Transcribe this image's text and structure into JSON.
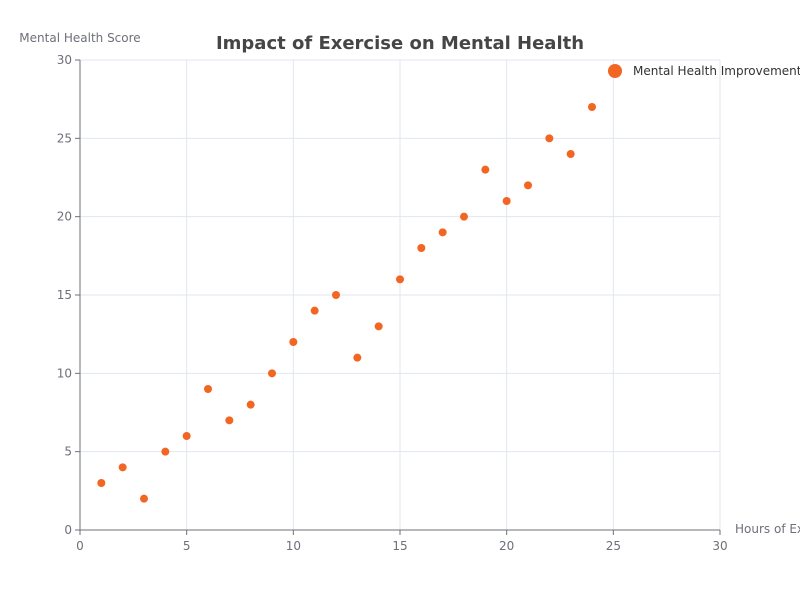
{
  "chart_data": {
    "type": "scatter",
    "title": "Impact of Exercise on Mental Health",
    "xlabel": "Hours of Exercise",
    "ylabel": "Mental Health Score",
    "xlim": [
      0,
      30
    ],
    "ylim": [
      0,
      30
    ],
    "x_ticks": [
      0,
      5,
      10,
      15,
      20,
      25,
      30
    ],
    "y_ticks": [
      0,
      5,
      10,
      15,
      20,
      25,
      30
    ],
    "grid": true,
    "legend_position": "top-right",
    "colors": {
      "series": "#f26522"
    },
    "series": [
      {
        "name": "Mental Health Improvement",
        "points": [
          {
            "x": 1,
            "y": 3
          },
          {
            "x": 2,
            "y": 4
          },
          {
            "x": 3,
            "y": 2
          },
          {
            "x": 4,
            "y": 5
          },
          {
            "x": 5,
            "y": 6
          },
          {
            "x": 6,
            "y": 9
          },
          {
            "x": 7,
            "y": 7
          },
          {
            "x": 8,
            "y": 8
          },
          {
            "x": 9,
            "y": 10
          },
          {
            "x": 10,
            "y": 12
          },
          {
            "x": 11,
            "y": 14
          },
          {
            "x": 12,
            "y": 15
          },
          {
            "x": 13,
            "y": 11
          },
          {
            "x": 14,
            "y": 13
          },
          {
            "x": 15,
            "y": 16
          },
          {
            "x": 16,
            "y": 18
          },
          {
            "x": 17,
            "y": 19
          },
          {
            "x": 18,
            "y": 20
          },
          {
            "x": 19,
            "y": 23
          },
          {
            "x": 20,
            "y": 21
          },
          {
            "x": 21,
            "y": 22
          },
          {
            "x": 22,
            "y": 25
          },
          {
            "x": 23,
            "y": 24
          },
          {
            "x": 24,
            "y": 27
          }
        ]
      }
    ]
  }
}
